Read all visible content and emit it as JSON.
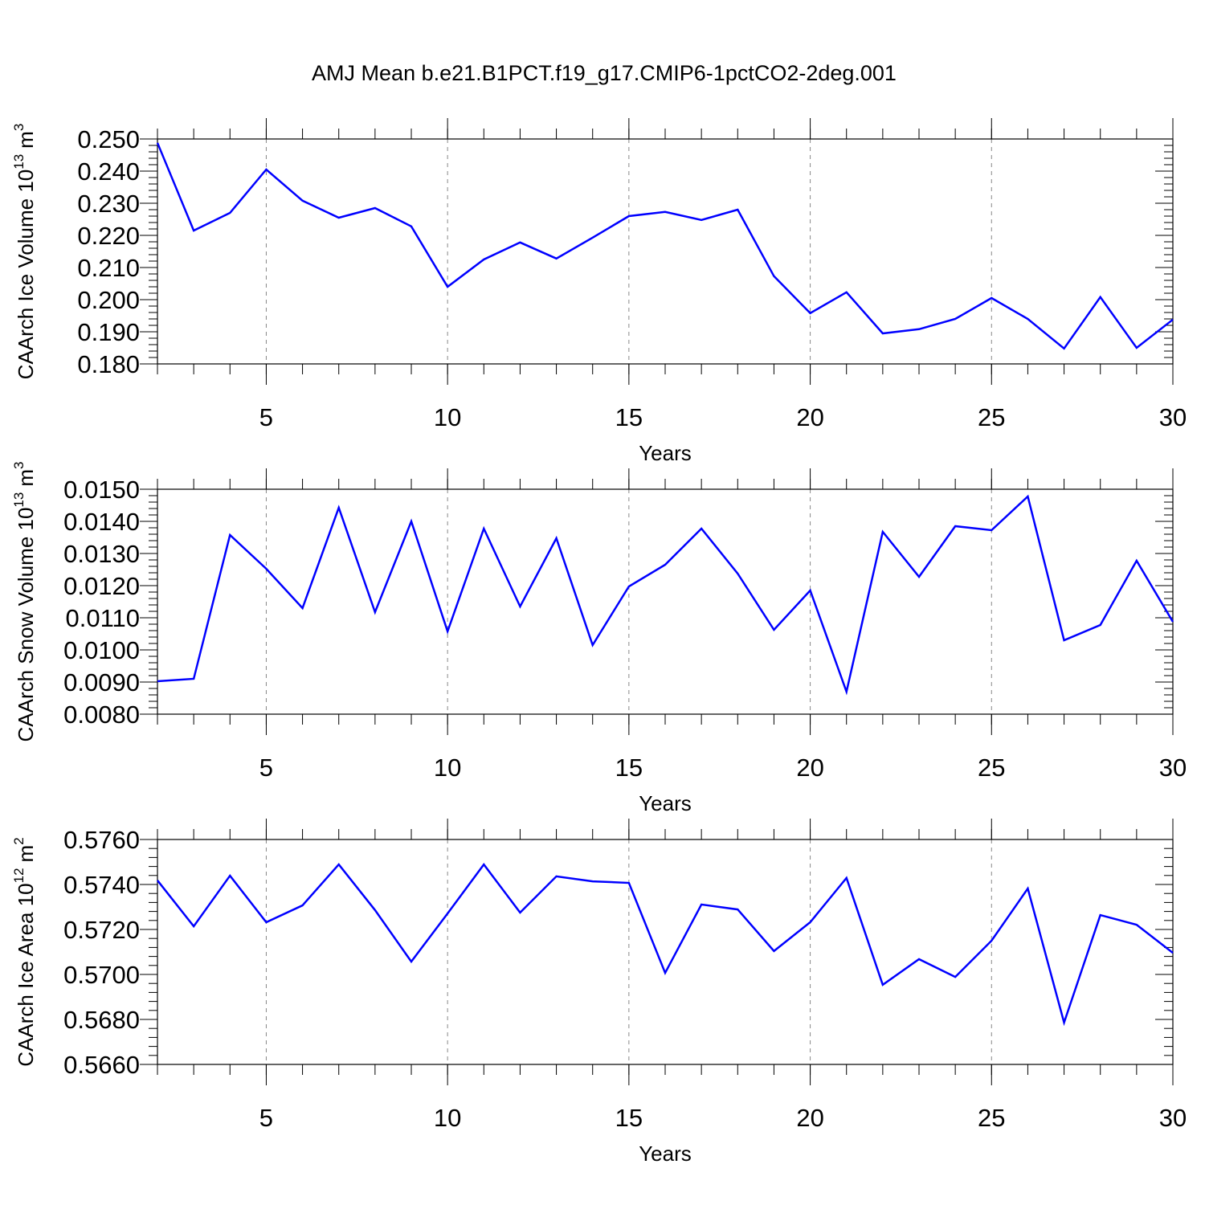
{
  "title": "AMJ Mean b.e21.B1PCT.f19_g17.CMIP6-1pctCO2-2deg.001",
  "chart_data": [
    {
      "type": "line",
      "xlabel": "Years",
      "ylabel": [
        "CAArch Ice Volume 10",
        "13",
        "m",
        "3"
      ],
      "x": [
        2,
        3,
        4,
        5,
        6,
        7,
        8,
        9,
        10,
        11,
        12,
        13,
        14,
        15,
        16,
        17,
        18,
        19,
        20,
        21,
        22,
        23,
        24,
        25,
        26,
        27,
        28,
        29,
        30
      ],
      "series": [
        {
          "color": "#0000ff",
          "values": [
            0.2488,
            0.2215,
            0.227,
            0.2405,
            0.2308,
            0.2255,
            0.2285,
            0.2228,
            0.204,
            0.2125,
            0.2178,
            0.2128,
            0.2193,
            0.226,
            0.2273,
            0.2248,
            0.228,
            0.2073,
            0.1958,
            0.2023,
            0.1895,
            0.1908,
            0.194,
            0.2005,
            0.194,
            0.1848,
            0.2008,
            0.185,
            0.1938
          ]
        }
      ],
      "xlim": [
        2,
        30
      ],
      "xticks": [
        5,
        10,
        15,
        20,
        25,
        30
      ],
      "ylim": [
        0.18,
        0.25
      ],
      "yticks": [
        {
          "value": 0.18,
          "label": "0.180"
        },
        {
          "value": 0.19,
          "label": "0.190"
        },
        {
          "value": 0.2,
          "label": "0.200"
        },
        {
          "value": 0.21,
          "label": "0.210"
        },
        {
          "value": 0.22,
          "label": "0.220"
        },
        {
          "value": 0.23,
          "label": "0.230"
        },
        {
          "value": 0.24,
          "label": "0.240"
        },
        {
          "value": 0.25,
          "label": "0.250"
        }
      ],
      "grid": "x"
    },
    {
      "type": "line",
      "xlabel": "Years",
      "ylabel": [
        "CAArch Snow Volume 10",
        "13",
        "m",
        "3"
      ],
      "x": [
        2,
        3,
        4,
        5,
        6,
        7,
        8,
        9,
        10,
        11,
        12,
        13,
        14,
        15,
        16,
        17,
        18,
        19,
        20,
        21,
        22,
        23,
        24,
        25,
        26,
        27,
        28,
        29,
        30
      ],
      "series": [
        {
          "color": "#0000ff",
          "values": [
            0.009025,
            0.0091,
            0.013575,
            0.012525,
            0.0113,
            0.014425,
            0.011175,
            0.014,
            0.010575,
            0.013775,
            0.01135,
            0.013475,
            0.01015,
            0.011975,
            0.01265,
            0.013775,
            0.012375,
            0.010625,
            0.01185,
            0.0087,
            0.013675,
            0.012275,
            0.01385,
            0.013725,
            0.014775,
            0.0103,
            0.010775,
            0.012775,
            0.010875
          ]
        }
      ],
      "xlim": [
        2,
        30
      ],
      "xticks": [
        5,
        10,
        15,
        20,
        25,
        30
      ],
      "ylim": [
        0.008,
        0.015
      ],
      "yticks": [
        {
          "value": 0.008,
          "label": "0.0080"
        },
        {
          "value": 0.009,
          "label": "0.0090"
        },
        {
          "value": 0.01,
          "label": "0.0100"
        },
        {
          "value": 0.011,
          "label": "0.0110"
        },
        {
          "value": 0.012,
          "label": "0.0120"
        },
        {
          "value": 0.013,
          "label": "0.0130"
        },
        {
          "value": 0.014,
          "label": "0.0140"
        },
        {
          "value": 0.015,
          "label": "0.0150"
        }
      ],
      "grid": "x"
    },
    {
      "type": "line",
      "xlabel": "Years",
      "ylabel": [
        "CAArch Ice Area 10",
        "12",
        "m",
        "2"
      ],
      "x": [
        2,
        3,
        4,
        5,
        6,
        7,
        8,
        9,
        10,
        11,
        12,
        13,
        14,
        15,
        16,
        17,
        18,
        19,
        20,
        21,
        22,
        23,
        24,
        25,
        26,
        27,
        28,
        29,
        30
      ],
      "series": [
        {
          "color": "#0000ff",
          "values": [
            0.57418,
            0.57214,
            0.57439,
            0.57232,
            0.57307,
            0.57489,
            0.57286,
            0.57057,
            0.57271,
            0.57489,
            0.57275,
            0.57436,
            0.57414,
            0.57407,
            0.57007,
            0.57311,
            0.57289,
            0.57104,
            0.57232,
            0.57429,
            0.56954,
            0.57068,
            0.56989,
            0.5715,
            0.57382,
            0.56786,
            0.57264,
            0.57221,
            0.57096
          ]
        }
      ],
      "xlim": [
        2,
        30
      ],
      "xticks": [
        5,
        10,
        15,
        20,
        25,
        30
      ],
      "ylim": [
        0.566,
        0.576
      ],
      "yticks": [
        {
          "value": 0.566,
          "label": "0.5660"
        },
        {
          "value": 0.568,
          "label": "0.5680"
        },
        {
          "value": 0.57,
          "label": "0.5700"
        },
        {
          "value": 0.572,
          "label": "0.5720"
        },
        {
          "value": 0.574,
          "label": "0.5740"
        },
        {
          "value": 0.576,
          "label": "0.5760"
        }
      ],
      "grid": "x"
    }
  ]
}
